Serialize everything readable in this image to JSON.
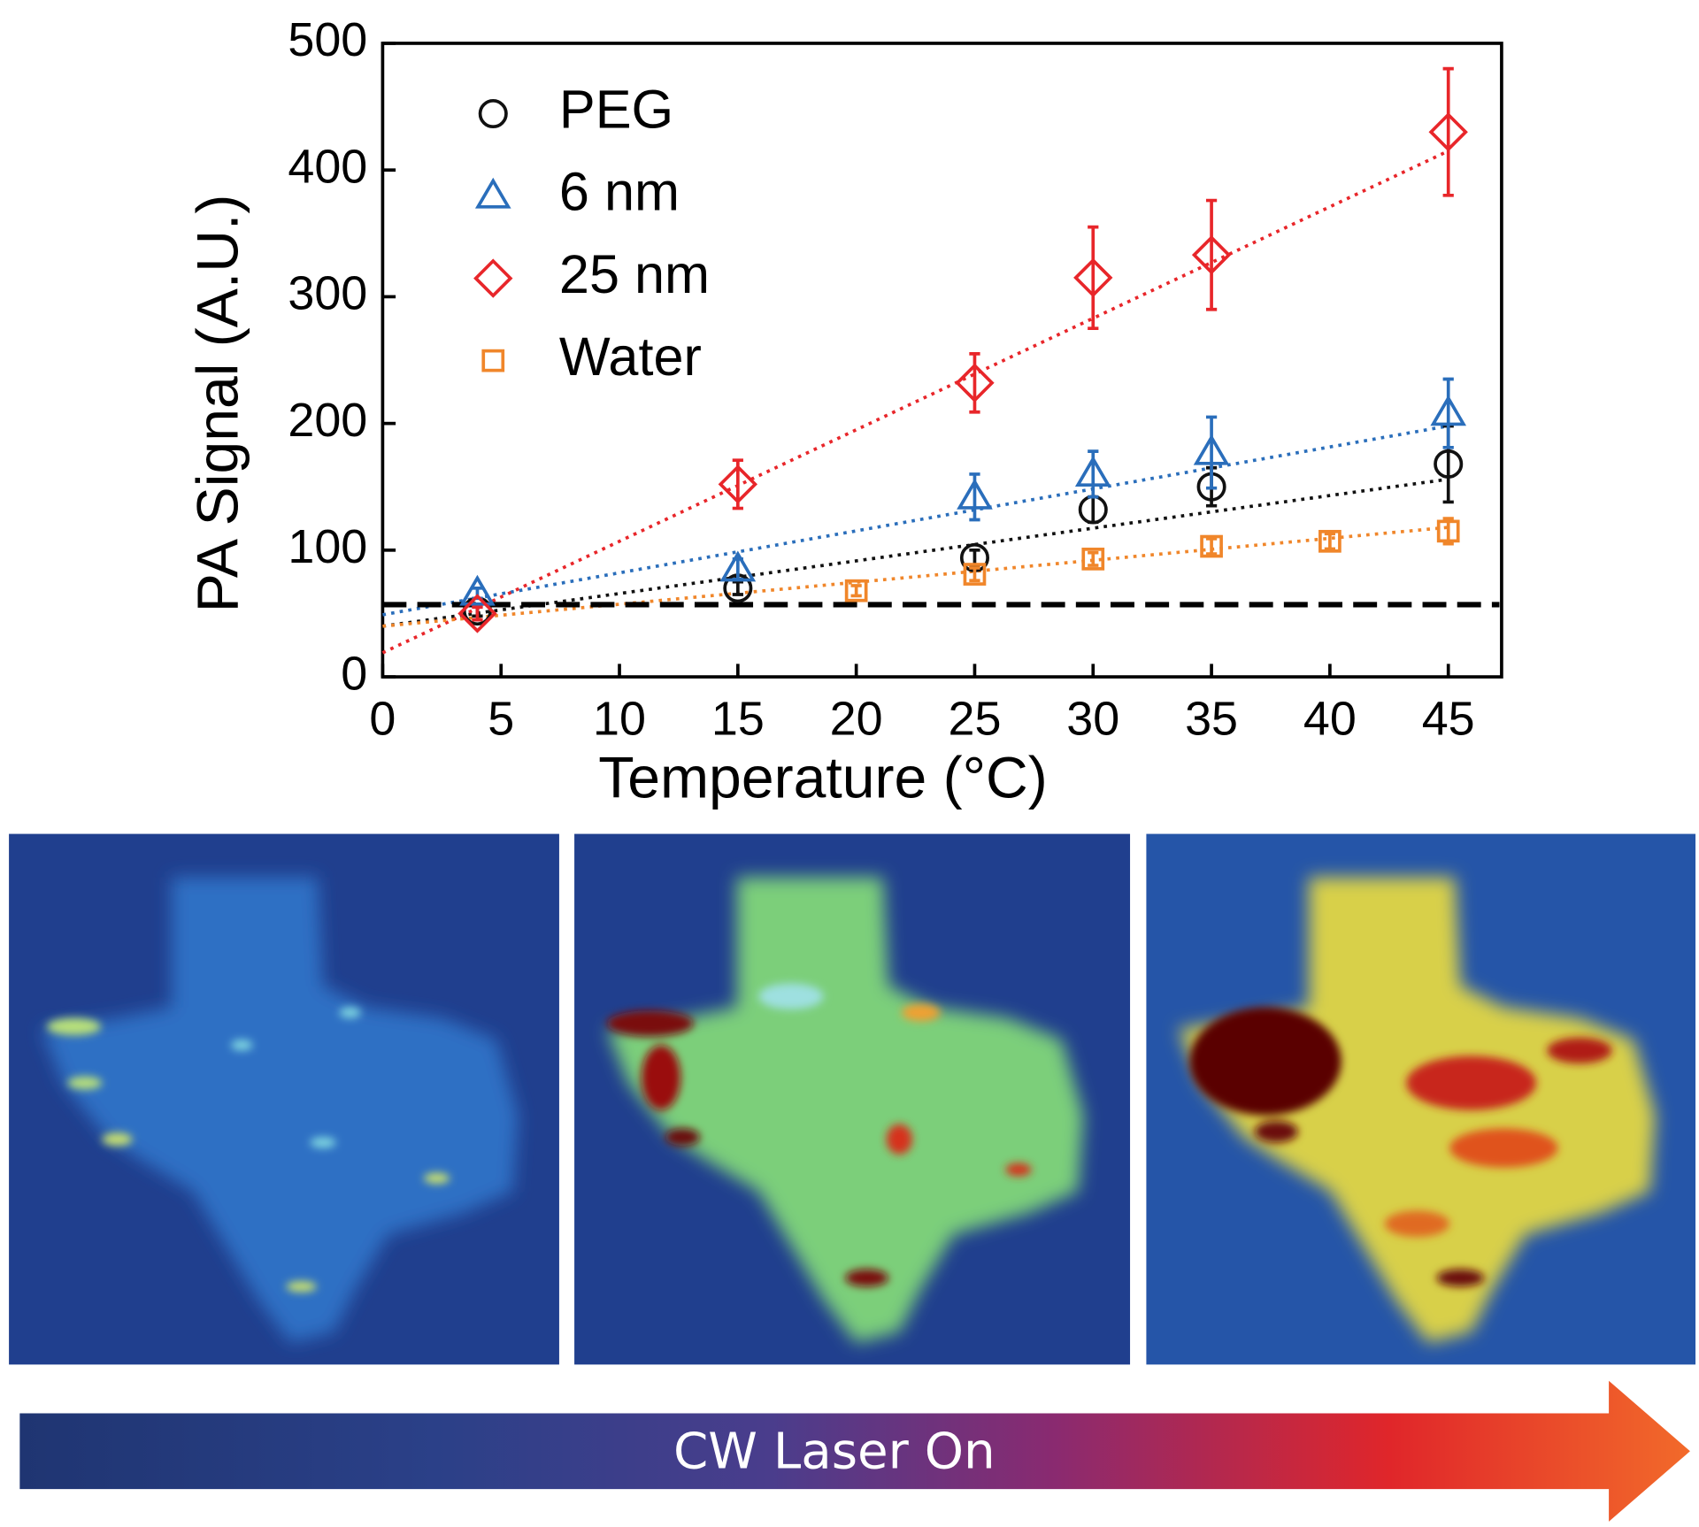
{
  "chart_data": {
    "type": "scatter",
    "xlabel": "Temperature (°C)",
    "ylabel": "PA Signal (A.U.)",
    "xlim": [
      0,
      47.25
    ],
    "ylim": [
      0,
      500
    ],
    "xticks": [
      0,
      5,
      10,
      15,
      20,
      25,
      30,
      35,
      40,
      45
    ],
    "yticks": [
      0,
      100,
      200,
      300,
      400,
      500
    ],
    "legend": "upper-left",
    "threshold": 57,
    "series": [
      {
        "name": "PEG",
        "color": "#111111",
        "marker": "circle",
        "x": [
          4,
          15,
          25,
          30,
          35,
          45
        ],
        "values": [
          52,
          70,
          94,
          132,
          150,
          168
        ],
        "errors": [
          4,
          5,
          6,
          10,
          15,
          30
        ],
        "fit_x": [
          0,
          45
        ],
        "fit_values": [
          40,
          156
        ]
      },
      {
        "name": "6 nm",
        "color": "#2a6ebb",
        "marker": "triangle",
        "x": [
          4,
          15,
          25,
          30,
          35,
          45
        ],
        "values": [
          66,
          85,
          142,
          160,
          177,
          208
        ],
        "errors": [
          4,
          8,
          18,
          18,
          28,
          27
        ],
        "fit_x": [
          0,
          45
        ],
        "fit_values": [
          49,
          198
        ]
      },
      {
        "name": "25 nm",
        "color": "#e8262a",
        "marker": "diamond",
        "x": [
          4,
          15,
          25,
          30,
          35,
          45
        ],
        "values": [
          50,
          152,
          232,
          315,
          333,
          430
        ],
        "errors": [
          5,
          19,
          23,
          40,
          43,
          50
        ],
        "fit_x": [
          0,
          45
        ],
        "fit_values": [
          19,
          415
        ]
      },
      {
        "name": "Water",
        "color": "#f0862a",
        "marker": "square",
        "x": [
          20,
          25,
          30,
          35,
          40,
          45
        ],
        "values": [
          68,
          81,
          93,
          103,
          107,
          115
        ],
        "errors": [
          4,
          5,
          5,
          6,
          6,
          10
        ],
        "fit_x": [
          0,
          45
        ],
        "fit_values": [
          40,
          118
        ]
      }
    ]
  },
  "arrow_label": "CW Laser On"
}
